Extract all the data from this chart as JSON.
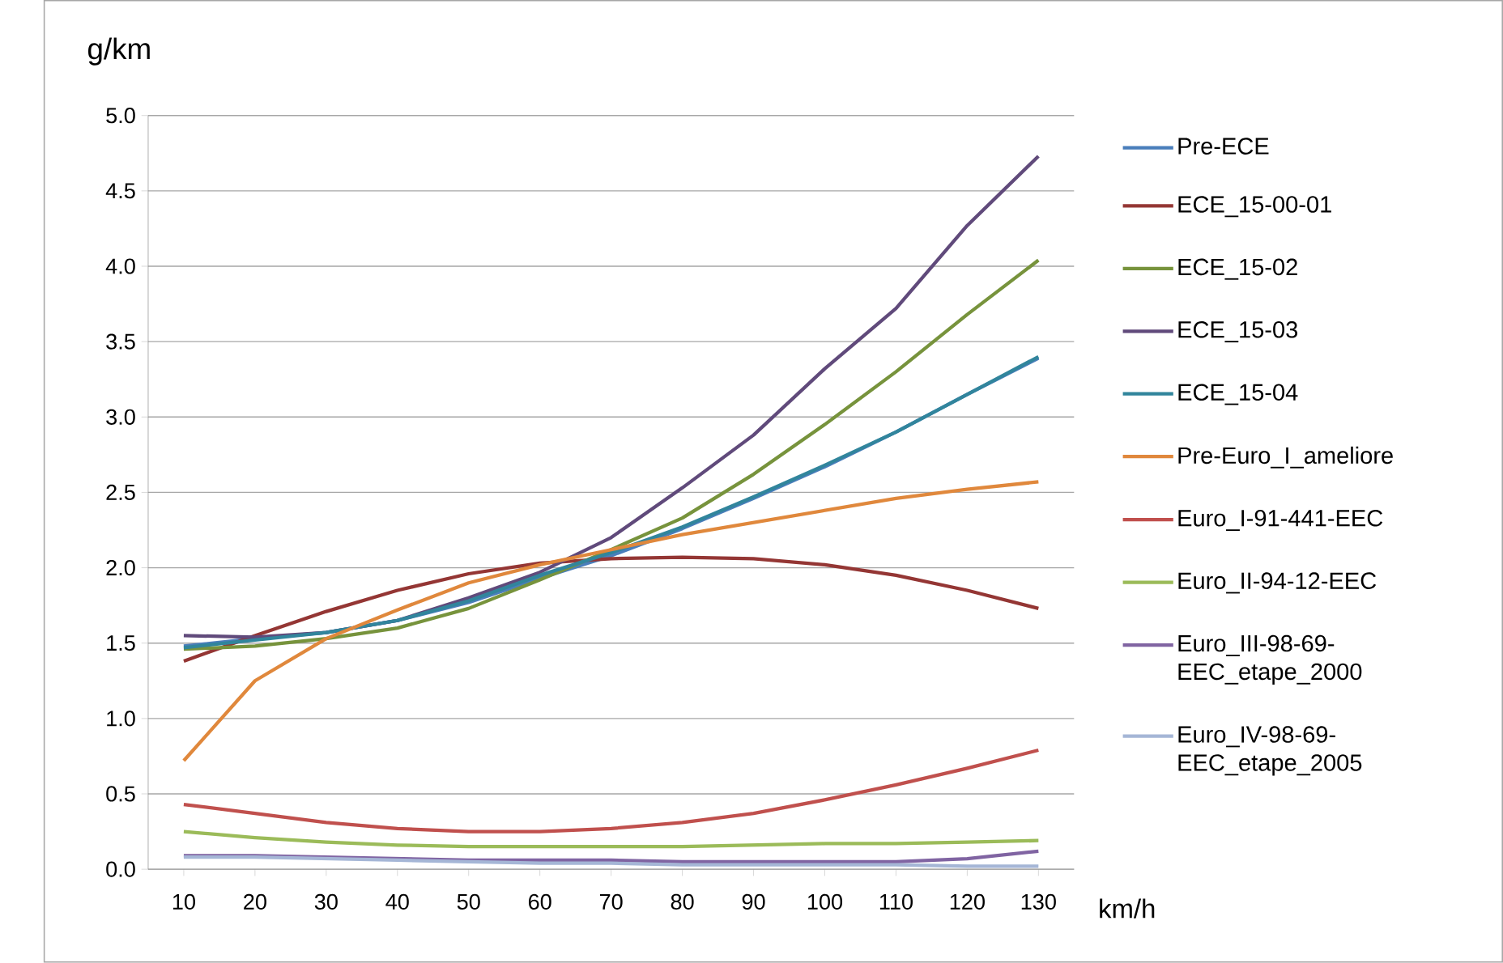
{
  "chart_data": {
    "type": "line",
    "ylabel": "g/km",
    "xlabel": "km/h",
    "x": [
      10,
      20,
      30,
      40,
      50,
      60,
      70,
      80,
      90,
      100,
      110,
      120,
      130
    ],
    "xlim": [
      5,
      135
    ],
    "xticks": [
      10,
      20,
      30,
      40,
      50,
      60,
      70,
      80,
      90,
      100,
      110,
      120,
      130
    ],
    "ylim": [
      0,
      5
    ],
    "yticks": [
      {
        "value": 0,
        "label": "0.0"
      },
      {
        "value": 0.5,
        "label": "0.5"
      },
      {
        "value": 1,
        "label": "1.0"
      },
      {
        "value": 1.5,
        "label": "1.5"
      },
      {
        "value": 2,
        "label": "2.0"
      },
      {
        "value": 2.5,
        "label": "2.5"
      },
      {
        "value": 3,
        "label": "3.0"
      },
      {
        "value": 3.5,
        "label": "3.5"
      },
      {
        "value": 4,
        "label": "4.0"
      },
      {
        "value": 4.5,
        "label": "4.5"
      },
      {
        "value": 5,
        "label": "5.0"
      }
    ],
    "grid": "y",
    "legend": "right",
    "series": [
      {
        "name": "Pre-ECE",
        "color": "#4a7ebb",
        "values": [
          1.48,
          1.53,
          1.57,
          1.65,
          1.77,
          1.93,
          2.08,
          2.26,
          2.46,
          2.67,
          2.9,
          3.15,
          3.39
        ]
      },
      {
        "name": "ECE_15-00-01",
        "color": "#943634",
        "values": [
          1.38,
          1.55,
          1.71,
          1.85,
          1.96,
          2.03,
          2.06,
          2.07,
          2.06,
          2.02,
          1.95,
          1.85,
          1.73
        ]
      },
      {
        "name": "ECE_15-02",
        "color": "#77933c",
        "values": [
          1.46,
          1.48,
          1.53,
          1.6,
          1.73,
          1.92,
          2.12,
          2.33,
          2.62,
          2.95,
          3.3,
          3.68,
          4.04
        ]
      },
      {
        "name": "ECE_15-03",
        "color": "#604a7b",
        "values": [
          1.55,
          1.54,
          1.57,
          1.65,
          1.8,
          1.97,
          2.2,
          2.53,
          2.88,
          3.32,
          3.72,
          4.27,
          4.73
        ]
      },
      {
        "name": "ECE_15-04",
        "color": "#31859c",
        "values": [
          1.47,
          1.52,
          1.57,
          1.65,
          1.78,
          1.95,
          2.1,
          2.27,
          2.47,
          2.68,
          2.9,
          3.15,
          3.4
        ]
      },
      {
        "name": "Pre-Euro_I_ameliore",
        "color": "#e0883c",
        "values": [
          0.72,
          1.25,
          1.53,
          1.72,
          1.9,
          2.02,
          2.12,
          2.22,
          2.3,
          2.38,
          2.46,
          2.52,
          2.57
        ]
      },
      {
        "name": "Euro_I-91-441-EEC",
        "color": "#c0504d",
        "values": [
          0.43,
          0.37,
          0.31,
          0.27,
          0.25,
          0.25,
          0.27,
          0.31,
          0.37,
          0.46,
          0.56,
          0.67,
          0.79
        ]
      },
      {
        "name": "Euro_II-94-12-EEC",
        "color": "#9bbb59",
        "values": [
          0.25,
          0.21,
          0.18,
          0.16,
          0.15,
          0.15,
          0.15,
          0.15,
          0.16,
          0.17,
          0.17,
          0.18,
          0.19
        ]
      },
      {
        "name": "Euro_III-98-69-EEC_etape_2000",
        "color": "#8064a2",
        "values": [
          0.09,
          0.09,
          0.08,
          0.07,
          0.06,
          0.06,
          0.06,
          0.05,
          0.05,
          0.05,
          0.05,
          0.07,
          0.12
        ]
      },
      {
        "name": "Euro_IV-98-69-EEC_etape_2005",
        "color": "#a5b6d6",
        "values": [
          0.08,
          0.08,
          0.07,
          0.06,
          0.05,
          0.04,
          0.04,
          0.03,
          0.03,
          0.03,
          0.03,
          0.02,
          0.02
        ]
      }
    ]
  }
}
